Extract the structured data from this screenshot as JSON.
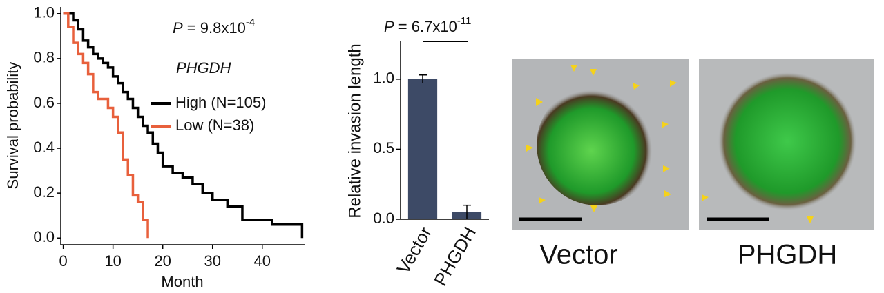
{
  "chart_data": [
    {
      "type": "survival",
      "ylabel": "Survival probability",
      "xlabel": "Month",
      "xlim": [
        -0.5,
        48.5
      ],
      "xticks": [
        0,
        10,
        20,
        30,
        40
      ],
      "ylim": [
        -0.03,
        1.03
      ],
      "yticks": [
        {
          "value": 0,
          "label": "0.0"
        },
        {
          "value": 0.2,
          "label": "0.2"
        },
        {
          "value": 0.4,
          "label": "0.4"
        },
        {
          "value": 0.6,
          "label": "0.6"
        },
        {
          "value": 0.8,
          "label": "0.8"
        },
        {
          "value": 1,
          "label": "1.0"
        }
      ],
      "annotation": {
        "prefix": "P",
        "text": " = 9.8x10",
        "exponent": "-4"
      },
      "legend_title": "PHGDH",
      "legend": "right",
      "series": [
        {
          "name": "High (N=105)",
          "color": "#000000",
          "x": [
            0,
            2,
            3,
            4,
            5,
            6,
            7,
            8,
            9,
            10,
            11,
            12,
            13,
            14,
            15,
            16,
            17,
            18,
            19,
            20,
            22,
            24,
            26,
            28,
            30,
            33,
            36,
            42,
            48,
            48
          ],
          "values": [
            1.0,
            0.97,
            0.93,
            0.88,
            0.85,
            0.82,
            0.8,
            0.78,
            0.76,
            0.72,
            0.69,
            0.65,
            0.62,
            0.58,
            0.54,
            0.5,
            0.47,
            0.42,
            0.38,
            0.32,
            0.29,
            0.27,
            0.24,
            0.2,
            0.17,
            0.14,
            0.08,
            0.06,
            0.03,
            0.0
          ]
        },
        {
          "name": "Low (N=38)",
          "color": "#e8603c",
          "x": [
            0,
            1,
            2,
            3,
            4,
            5,
            6,
            7,
            9,
            10,
            11,
            12,
            13,
            14,
            15,
            16,
            17
          ],
          "values": [
            1.0,
            0.94,
            0.87,
            0.82,
            0.78,
            0.73,
            0.65,
            0.62,
            0.58,
            0.54,
            0.47,
            0.35,
            0.28,
            0.19,
            0.16,
            0.08,
            0.0
          ]
        }
      ]
    },
    {
      "type": "bar",
      "ylabel": "Relative invasion length",
      "categories": [
        "Vector",
        "PHGDH"
      ],
      "values": [
        1.0,
        0.05
      ],
      "errors": [
        0.03,
        0.05
      ],
      "color": "#3d4a66",
      "ylim": [
        0,
        1.27
      ],
      "yticks": [
        {
          "value": 0,
          "label": "0.0"
        },
        0.5,
        {
          "value": 1,
          "label": "1.0"
        }
      ],
      "annotation": {
        "prefix": "P",
        "text": " = 6.7x10",
        "exponent": "-11"
      }
    }
  ],
  "images": [
    {
      "caption": "Vector"
    },
    {
      "caption": "PHGDH"
    }
  ]
}
